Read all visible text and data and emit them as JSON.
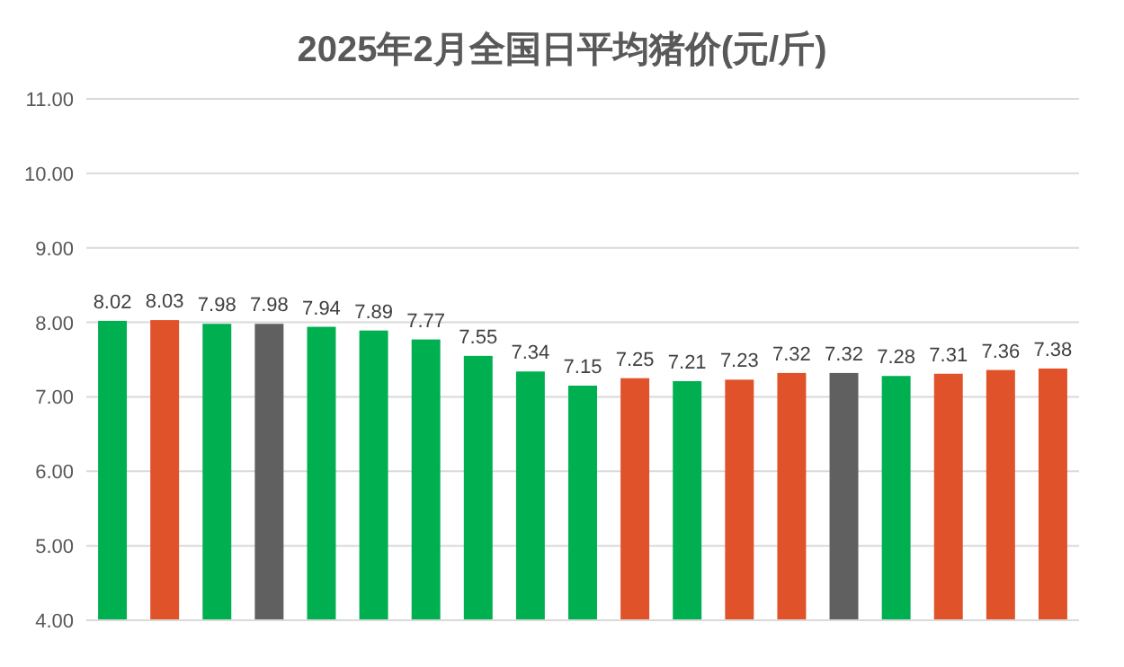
{
  "chart_data": {
    "type": "bar",
    "title": "2025年2月全国日平均猪价(元/斤)",
    "categories": [
      null,
      null,
      null,
      null,
      null,
      null,
      null,
      null,
      null,
      null,
      null,
      null,
      null,
      null,
      null,
      null,
      null,
      null,
      null
    ],
    "values": [
      8.02,
      8.03,
      7.98,
      7.98,
      7.94,
      7.89,
      7.77,
      7.55,
      7.34,
      7.15,
      7.25,
      7.21,
      7.23,
      7.32,
      7.32,
      7.28,
      7.31,
      7.36,
      7.38
    ],
    "colors": [
      "#00b050",
      "#e0522a",
      "#00b050",
      "#606060",
      "#00b050",
      "#00b050",
      "#00b050",
      "#00b050",
      "#00b050",
      "#00b050",
      "#e0522a",
      "#00b050",
      "#e0522a",
      "#e0522a",
      "#606060",
      "#00b050",
      "#e0522a",
      "#e0522a",
      "#e0522a"
    ],
    "ylim": [
      4,
      11
    ],
    "yticks": [
      {
        "value": 4,
        "label": "4.00"
      },
      {
        "value": 5,
        "label": "5.00"
      },
      {
        "value": 6,
        "label": "6.00"
      },
      {
        "value": 7,
        "label": "7.00"
      },
      {
        "value": 8,
        "label": "8.00"
      },
      {
        "value": 9,
        "label": "9.00"
      },
      {
        "value": 10,
        "label": "10.00"
      },
      {
        "value": 11,
        "label": "11.00"
      }
    ],
    "grid": "y",
    "data_labels": true,
    "tick_labels": "y"
  }
}
